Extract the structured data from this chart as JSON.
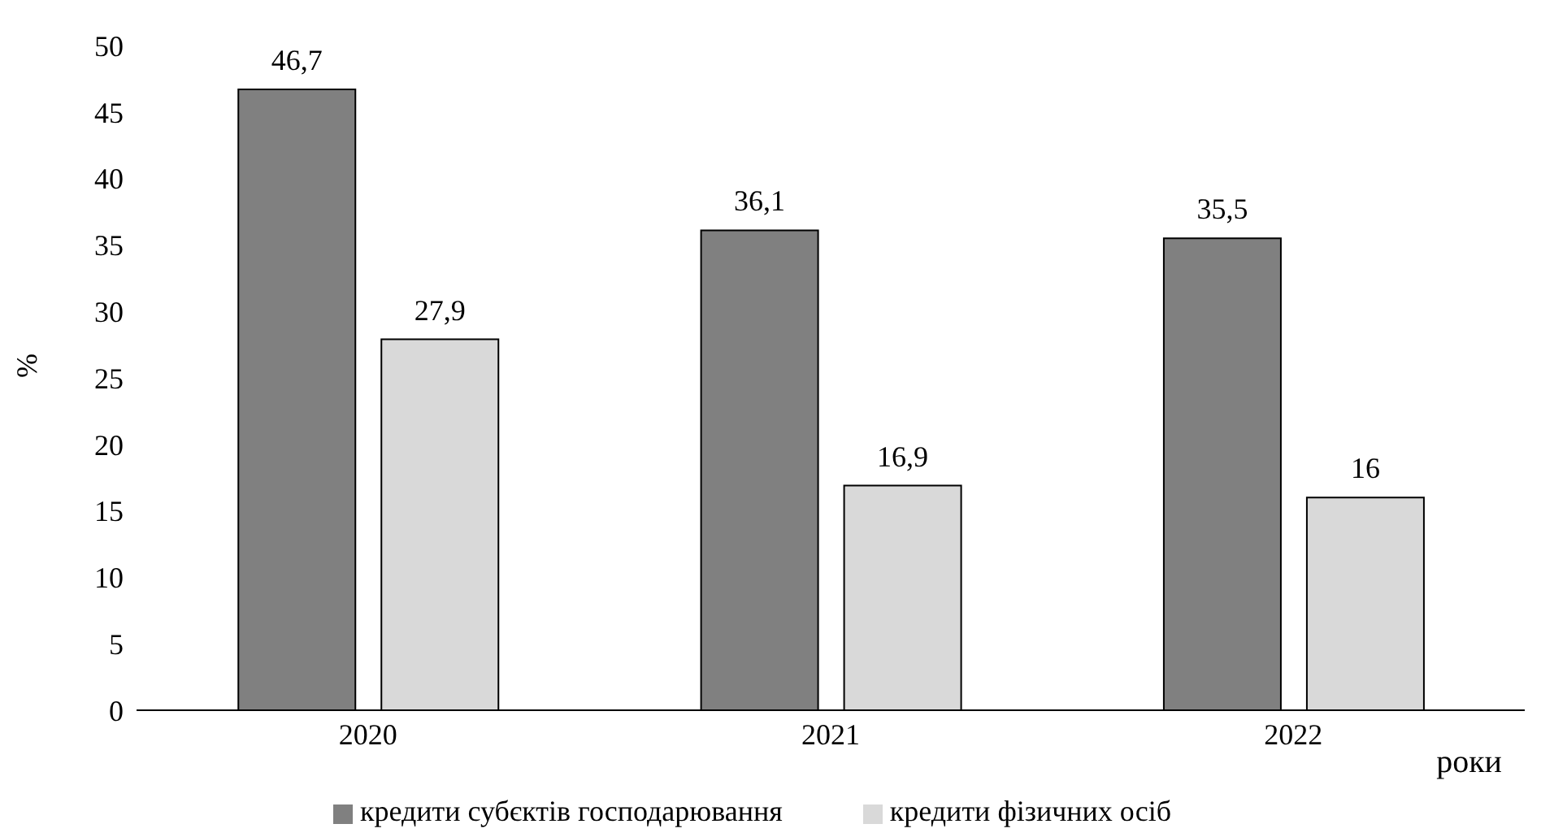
{
  "chart_data": {
    "type": "bar",
    "categories": [
      "2020",
      "2021",
      "2022"
    ],
    "series": [
      {
        "name": "кредити субєктів господарювання",
        "color": "#808080",
        "values": [
          46.7,
          36.1,
          35.5
        ],
        "value_labels": [
          "46,7",
          "36,1",
          "35,5"
        ]
      },
      {
        "name": "кредити фізичних осіб",
        "color": "#d9d9d9",
        "values": [
          27.9,
          16.9,
          16
        ],
        "value_labels": [
          "27,9",
          "16,9",
          "16"
        ]
      }
    ],
    "xlabel": "роки",
    "ylabel": "%",
    "ylim": [
      0,
      50
    ],
    "yticks": [
      0,
      5,
      10,
      15,
      20,
      25,
      30,
      35,
      40,
      45,
      50
    ],
    "grid": false,
    "legend": "bottom"
  }
}
